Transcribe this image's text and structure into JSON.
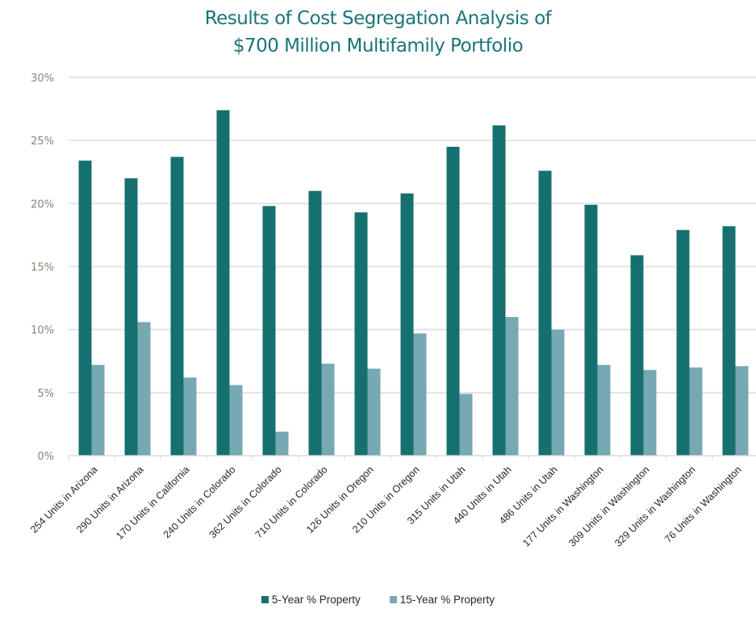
{
  "chart_data": {
    "type": "bar",
    "title": "Results of Cost Segregation Analysis of $700 Million Multifamily Portfolio",
    "title_lines": [
      "Results of Cost Segregation Analysis of",
      "$700 Million Multifamily Portfolio"
    ],
    "xlabel": "",
    "ylabel": "",
    "ylim": [
      0,
      30
    ],
    "yticks": [
      0,
      5,
      10,
      15,
      20,
      25,
      30
    ],
    "ytick_labels": [
      "0%",
      "5%",
      "10%",
      "15%",
      "20%",
      "25%",
      "30%"
    ],
    "grid": true,
    "legend_position": "bottom",
    "categories": [
      "254 Units in Arizona",
      "290 Units in Arizona",
      "170 Units in California",
      "240 Units in Colorado",
      "362 Units in Colorado",
      "710 Units in Colorado",
      "126 Units in Oregon",
      "210 Units in Oregon",
      "315 Units in Utah",
      "440 Units in Utah",
      "486 Units in Utah",
      "177 Units in Washington",
      "309 Units in Washington",
      "329 Units in Washington",
      "76 Units in Washington"
    ],
    "series": [
      {
        "name": "5-Year % Property",
        "color": "#16706f",
        "values": [
          23.4,
          22.0,
          23.7,
          27.4,
          19.8,
          21.0,
          19.3,
          20.8,
          24.5,
          26.2,
          22.6,
          19.9,
          15.9,
          17.9,
          18.2
        ]
      },
      {
        "name": "15-Year % Property",
        "color": "#77a9b3",
        "values": [
          7.2,
          10.6,
          6.2,
          5.6,
          1.9,
          7.3,
          6.9,
          9.7,
          4.9,
          11.0,
          10.0,
          7.2,
          6.8,
          7.0,
          7.1
        ]
      }
    ]
  }
}
